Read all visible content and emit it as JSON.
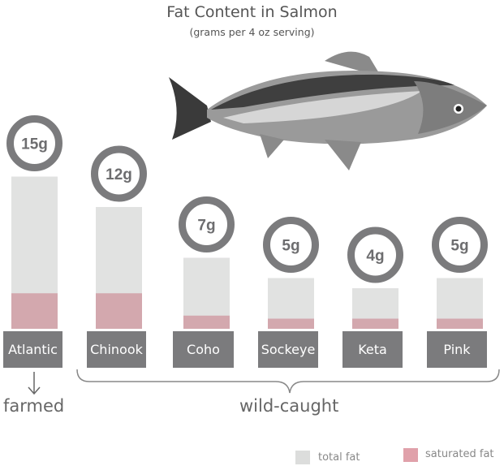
{
  "chart_data": {
    "type": "bar",
    "title": "Fat Content in Salmon",
    "subtitle": "(grams per 4 oz serving)",
    "categories": [
      "Atlantic",
      "Chinook",
      "Coho",
      "Sockeye",
      "Keta",
      "Pink"
    ],
    "series": [
      {
        "name": "total fat",
        "values": [
          15,
          12,
          7,
          5,
          4,
          5
        ],
        "color": "#e1e2e1"
      },
      {
        "name": "saturated fat",
        "values": [
          3.5,
          3.5,
          1.3,
          1,
          1,
          1
        ],
        "color": "#d3a8ae"
      }
    ],
    "data_labels": [
      "15g",
      "12g",
      "7g",
      "5g",
      "4g",
      "5g"
    ],
    "groups": [
      {
        "label": "farmed",
        "categories": [
          "Atlantic"
        ]
      },
      {
        "label": "wild-caught",
        "categories": [
          "Chinook",
          "Coho",
          "Sockeye",
          "Keta",
          "Pink"
        ]
      }
    ],
    "legend": {
      "position": "bottom-right",
      "items": [
        "total fat",
        "saturated fat"
      ],
      "colors": [
        "#dcdddc",
        "#e0a1aa"
      ]
    },
    "axes": "none",
    "grid": false
  }
}
